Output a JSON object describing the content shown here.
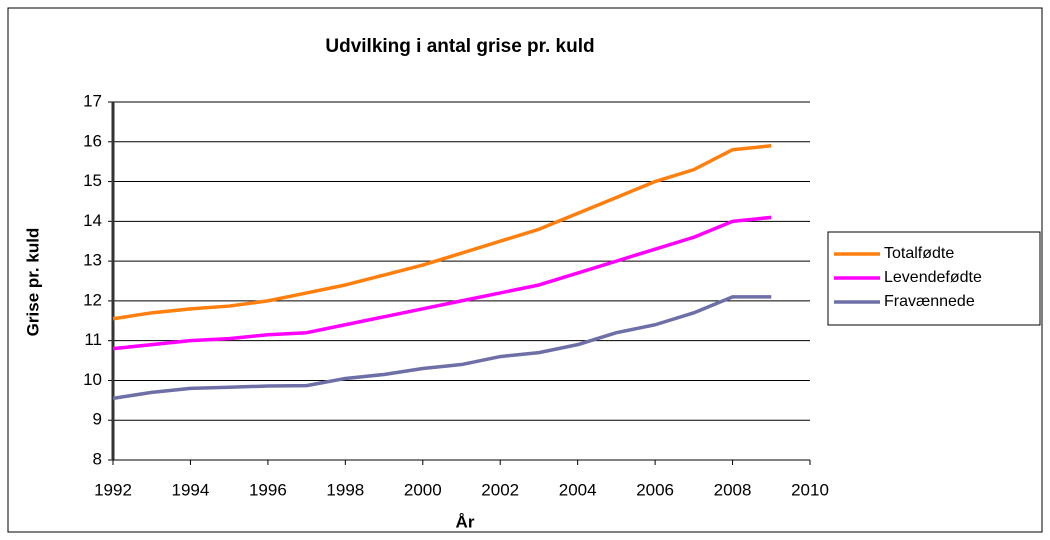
{
  "chart_data": {
    "type": "line",
    "title": "Udvilking i antal grise pr. kuld",
    "xlabel": "År",
    "ylabel": "Grise pr. kuld",
    "x": [
      1992,
      1993,
      1994,
      1995,
      1996,
      1997,
      1998,
      1999,
      2000,
      2001,
      2002,
      2003,
      2004,
      2005,
      2006,
      2007,
      2008,
      2009
    ],
    "series": [
      {
        "name": "Totalfødte",
        "color": "#ff7f0e",
        "values": [
          11.55,
          11.7,
          11.8,
          11.87,
          12.0,
          12.2,
          12.4,
          12.65,
          12.9,
          13.2,
          13.5,
          13.8,
          14.2,
          14.6,
          15.0,
          15.3,
          15.8,
          15.9
        ]
      },
      {
        "name": "Levendefødte",
        "color": "#ff00ff",
        "values": [
          10.8,
          10.9,
          11.0,
          11.05,
          11.15,
          11.2,
          11.4,
          11.6,
          11.8,
          12.0,
          12.2,
          12.4,
          12.7,
          13.0,
          13.3,
          13.6,
          14.0,
          14.1
        ]
      },
      {
        "name": "Fravænnede",
        "color": "#6f6fa8",
        "values": [
          9.55,
          9.7,
          9.8,
          9.83,
          9.86,
          9.87,
          10.05,
          10.15,
          10.3,
          10.4,
          10.6,
          10.7,
          10.9,
          11.2,
          11.4,
          11.7,
          12.1,
          12.1
        ]
      }
    ],
    "xlim": [
      1992,
      2010
    ],
    "xticks": [
      1992,
      1994,
      1996,
      1998,
      2000,
      2002,
      2004,
      2006,
      2008,
      2010
    ],
    "ylim": [
      8,
      17
    ],
    "yticks": [
      8,
      9,
      10,
      11,
      12,
      13,
      14,
      15,
      16,
      17
    ],
    "grid": true,
    "legend": "right"
  }
}
